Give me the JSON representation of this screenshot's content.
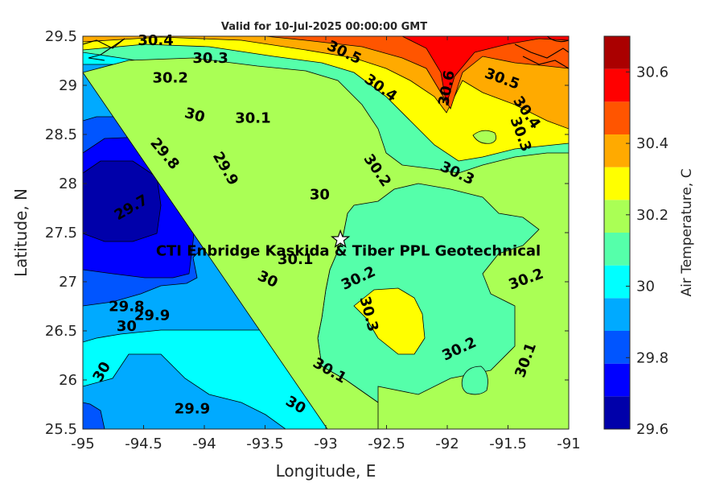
{
  "chart_data": {
    "type": "heatmap",
    "title": "Valid for 10-Jul-2025 00:00:00 GMT",
    "xlabel": "Longitude, E",
    "ylabel": "Latitude, N",
    "xlim": [
      -95,
      -91
    ],
    "ylim": [
      25.5,
      29.5
    ],
    "x_ticks": [
      "-95",
      "-94.5",
      "-94",
      "-93.5",
      "-93",
      "-92.5",
      "-92",
      "-91.5",
      "-91"
    ],
    "y_ticks": [
      "25.5",
      "26",
      "26.5",
      "27",
      "27.5",
      "28",
      "28.5",
      "29",
      "29.5"
    ],
    "colorbar": {
      "label": "Air Temperature, C",
      "range": [
        29.6,
        30.7
      ],
      "ticks": [
        "29.6",
        "29.8",
        "30",
        "30.2",
        "30.4",
        "30.6"
      ],
      "levels": [
        29.6,
        29.65,
        29.7,
        29.75,
        29.8,
        29.85,
        29.9,
        29.95,
        30.0,
        30.05,
        30.1,
        30.15,
        30.2,
        30.25,
        30.3,
        30.35,
        30.4,
        30.45,
        30.5,
        30.55,
        30.6,
        30.65,
        30.7
      ],
      "colors": [
        "#0000aa",
        "#0000ff",
        "#0055ff",
        "#00aaff",
        "#00ffff",
        "#55ffaa",
        "#aaff55",
        "#ffff00",
        "#ffaa00",
        "#ff5500",
        "#ff0000",
        "#aa0000"
      ]
    },
    "marker": {
      "type": "star",
      "lon": -92.88,
      "lat": 27.43,
      "label": "CTI Enbridge  Kaskida & Tiber PPL Geotechnical"
    },
    "contour_labels": [
      {
        "text": "30.4",
        "lon": -94.4,
        "lat": 29.45
      },
      {
        "text": "30.3",
        "lon": -93.95,
        "lat": 29.27
      },
      {
        "text": "30.5",
        "lon": -92.85,
        "lat": 29.33
      },
      {
        "text": "30.2",
        "lon": -94.28,
        "lat": 29.07
      },
      {
        "text": "30.4",
        "lon": -92.55,
        "lat": 28.97
      },
      {
        "text": "30.6",
        "lon": -92.0,
        "lat": 28.97
      },
      {
        "text": "30.5",
        "lon": -91.55,
        "lat": 29.06
      },
      {
        "text": "30",
        "lon": -94.08,
        "lat": 28.69
      },
      {
        "text": "30.1",
        "lon": -93.6,
        "lat": 28.66
      },
      {
        "text": "30.4",
        "lon": -91.35,
        "lat": 28.72
      },
      {
        "text": "30.3",
        "lon": -91.4,
        "lat": 28.5
      },
      {
        "text": "29.8",
        "lon": -94.33,
        "lat": 28.3
      },
      {
        "text": "29.9",
        "lon": -93.83,
        "lat": 28.15
      },
      {
        "text": "30.2",
        "lon": -92.58,
        "lat": 28.13
      },
      {
        "text": "30.3",
        "lon": -91.92,
        "lat": 28.1
      },
      {
        "text": "30",
        "lon": -93.05,
        "lat": 27.88
      },
      {
        "text": "29.7",
        "lon": -94.6,
        "lat": 27.75
      },
      {
        "text": "30.1",
        "lon": -93.25,
        "lat": 27.22
      },
      {
        "text": "30",
        "lon": -93.48,
        "lat": 27.02
      },
      {
        "text": "30.2",
        "lon": -92.73,
        "lat": 27.03
      },
      {
        "text": "30.2",
        "lon": -91.35,
        "lat": 27.02
      },
      {
        "text": "30.3",
        "lon": -92.65,
        "lat": 26.67
      },
      {
        "text": "29.8",
        "lon": -94.64,
        "lat": 26.74
      },
      {
        "text": "29.9",
        "lon": -94.43,
        "lat": 26.65
      },
      {
        "text": "30",
        "lon": -94.64,
        "lat": 26.54
      },
      {
        "text": "30.2",
        "lon": -91.9,
        "lat": 26.31
      },
      {
        "text": "30.1",
        "lon": -91.35,
        "lat": 26.2
      },
      {
        "text": "30",
        "lon": -94.84,
        "lat": 26.08
      },
      {
        "text": "30.1",
        "lon": -92.97,
        "lat": 26.09
      },
      {
        "text": "29.9",
        "lon": -94.1,
        "lat": 25.7
      },
      {
        "text": "30",
        "lon": -93.25,
        "lat": 25.74
      }
    ]
  }
}
